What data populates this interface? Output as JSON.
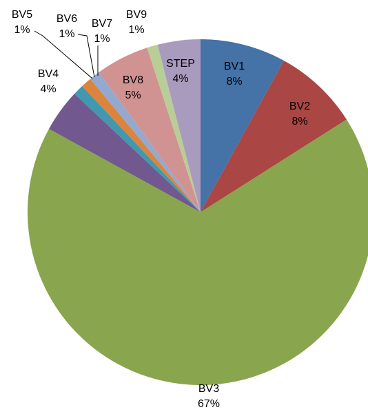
{
  "chart_data": {
    "type": "pie",
    "categories": [
      "BV1",
      "BV2",
      "BV3",
      "BV4",
      "BV5",
      "BV6",
      "BV7",
      "BV8",
      "BV9",
      "STEP"
    ],
    "values": [
      8,
      8,
      67,
      4,
      1,
      1,
      1,
      5,
      1,
      4
    ],
    "value_labels": [
      "8%",
      "8%",
      "67%",
      "4%",
      "1%",
      "1%",
      "1%",
      "5%",
      "1%",
      "4%"
    ],
    "colors": [
      "#4572a7",
      "#aa4643",
      "#89a54e",
      "#71588f",
      "#4198af",
      "#db843d",
      "#93a9cf",
      "#d19392",
      "#b9cd96",
      "#a99bbd"
    ]
  }
}
